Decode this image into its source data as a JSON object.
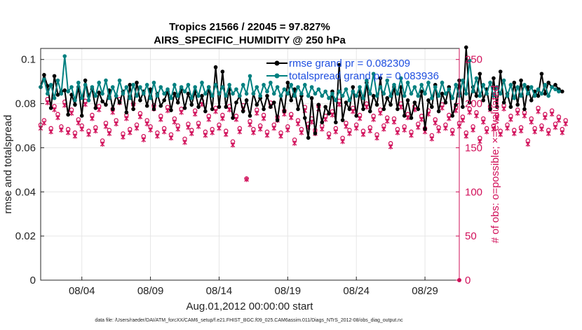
{
  "colors": {
    "rmse": "#000000",
    "spread": "#008080",
    "obs": "#d1105a",
    "legend_text": "#1f4fe0",
    "grid": "#e6e6e6"
  },
  "chart_data": {
    "type": "line",
    "title_line1": "Tropics 21566 / 22045 = 97.827%",
    "title_line2": "AIRS_SPECIFIC_HUMIDITY @ 250 hPa",
    "xlabel": "Aug.01,2012 00:00:00 start",
    "ylabel": "rmse and totalspread",
    "y2label": "# of obs: o=possible; ×=evaluated",
    "footer": "data file: /Users/raeder/DAI/ATM_forcXX/CAM6_setup/f.e21.FHIST_BGC.f09_025.CAM6assim.011/Diags_NTrS_2012-08/obs_diag_output.nc",
    "xlim": [
      1.0,
      31.5
    ],
    "ylim": [
      0,
      0.105
    ],
    "y2lim": [
      0,
      262.5
    ],
    "x_tick_values": [
      4,
      9,
      14,
      19,
      24,
      29
    ],
    "x_tick_labels": [
      "08/04",
      "08/09",
      "08/14",
      "08/19",
      "08/24",
      "08/29"
    ],
    "y_ticks": [
      0,
      0.02,
      0.04,
      0.06,
      0.08,
      0.1
    ],
    "y_tick_labels": [
      "0",
      "0.02",
      "0.04",
      "0.06",
      "0.08",
      "0.1"
    ],
    "y2_ticks": [
      0,
      50,
      100,
      150,
      200,
      250
    ],
    "y2_tick_labels": [
      "0",
      "50",
      "100",
      "150",
      "200",
      "250"
    ],
    "legend": {
      "position": "top-right",
      "rmse_label": "rmse grand pr = 0.082309",
      "spread_label": "totalspread grand pr = 0.083936"
    },
    "x_start": 1.0,
    "x_step": 0.25,
    "series": [
      {
        "name": "rmse",
        "axis": "left",
        "values": [
          0.0875,
          0.093,
          0.088,
          0.078,
          0.0925,
          0.084,
          0.0855,
          0.086,
          0.075,
          0.084,
          0.0795,
          0.0875,
          0.0745,
          0.0905,
          0.0835,
          0.0865,
          0.078,
          0.085,
          0.081,
          0.0795,
          0.086,
          0.0775,
          0.0835,
          0.0805,
          0.0855,
          0.076,
          0.0885,
          0.0775,
          0.0895,
          0.0815,
          0.0855,
          0.079,
          0.0865,
          0.0775,
          0.0845,
          0.079,
          0.0815,
          0.0855,
          0.077,
          0.0845,
          0.0805,
          0.0865,
          0.078,
          0.0845,
          0.0795,
          0.0855,
          0.0785,
          0.0835,
          0.0765,
          0.0875,
          0.0775,
          0.0965,
          0.0785,
          0.0945,
          0.0785,
          0.0865,
          0.0735,
          0.0805,
          0.0835,
          0.0765,
          0.0815,
          0.0745,
          0.0845,
          0.0795,
          0.0825,
          0.0775,
          0.0835,
          0.0785,
          0.0805,
          0.0725,
          0.0835,
          0.0765,
          0.0895,
          0.0815,
          0.0865,
          0.0775,
          0.0835,
          0.0735,
          0.0645,
          0.0825,
          0.0665,
          0.0795,
          0.0715,
          0.0785,
          0.0755,
          0.0855,
          0.0715,
          0.0975,
          0.0725,
          0.0805,
          0.0775,
          0.0875,
          0.0745,
          0.0855,
          0.0775,
          0.0895,
          0.0765,
          0.0835,
          0.0795,
          0.0915,
          0.0775,
          0.0825,
          0.0795,
          0.0875,
          0.0775,
          0.0875,
          0.0745,
          0.0815,
          0.0735,
          0.0805,
          0.0775,
          0.0855,
          0.0685,
          0.0815,
          0.0785,
          0.0885,
          0.0765,
          0.0845,
          0.0805,
          0.0875,
          0.0745,
          0.0795,
          0.0905,
          0.0785,
          0.1055,
          0.0805,
          0.0875,
          0.0835,
          0.0935,
          0.0815,
          0.0865,
          0.0775,
          0.0915,
          0.0785,
          0.0945,
          0.0805,
          0.0845,
          0.0785,
          0.0895,
          0.0795,
          0.0905,
          0.0775,
          0.0875,
          0.0815,
          0.0855,
          0.0835,
          0.0935,
          0.0845,
          0.0895,
          0.0875,
          0.0885,
          0.0865,
          0.0855
        ]
      },
      {
        "name": "totalspread",
        "axis": "left",
        "values": [
          0.0875,
          0.091,
          0.0845,
          0.0885,
          0.0825,
          0.0905,
          0.0845,
          0.1015,
          0.0855,
          0.0875,
          0.0815,
          0.0895,
          0.0825,
          0.0885,
          0.0815,
          0.0875,
          0.0835,
          0.0895,
          0.0845,
          0.0905,
          0.0825,
          0.0875,
          0.0835,
          0.0905,
          0.0845,
          0.0875,
          0.0825,
          0.0885,
          0.0835,
          0.0875,
          0.0845,
          0.0885,
          0.0825,
          0.0895,
          0.0835,
          0.0875,
          0.0845,
          0.0865,
          0.0825,
          0.0885,
          0.0835,
          0.0875,
          0.0855,
          0.0885,
          0.0825,
          0.0875,
          0.0835,
          0.0895,
          0.0845,
          0.0875,
          0.0835,
          0.0885,
          0.0845,
          0.0875,
          0.0835,
          0.0885,
          0.0845,
          0.0865,
          0.0835,
          0.0885,
          0.0845,
          0.0925,
          0.0845,
          0.0875,
          0.0835,
          0.0885,
          0.0855,
          0.0895,
          0.0845,
          0.0875,
          0.0835,
          0.0865,
          0.0845,
          0.0885,
          0.0835,
          0.0875,
          0.0845,
          0.0885,
          0.0835,
          0.0875,
          0.0845,
          0.0865,
          0.0835,
          0.0855,
          0.0825,
          0.0845,
          0.0815,
          0.0855,
          0.0835,
          0.0865,
          0.0815,
          0.0855,
          0.0835,
          0.0875,
          0.0825,
          0.0905,
          0.0845,
          0.0935,
          0.0835,
          0.0875,
          0.0845,
          0.0905,
          0.0835,
          0.0885,
          0.0845,
          0.0915,
          0.0835,
          0.0895,
          0.0845,
          0.0875,
          0.0835,
          0.0885,
          0.0845,
          0.0895,
          0.0825,
          0.0875,
          0.0835,
          0.0895,
          0.0845,
          0.0865,
          0.0825,
          0.0885,
          0.0835,
          0.0905,
          0.0845,
          0.0995,
          0.0855,
          0.0915,
          0.0835,
          0.0885,
          0.0845,
          0.0895,
          0.0835,
          0.0875,
          0.0845,
          0.0905,
          0.0835,
          0.0885,
          0.0825,
          0.0875,
          0.0835,
          0.0885,
          0.0845,
          0.0875,
          0.0835,
          0.0865,
          0.0845,
          0.0885,
          0.0835,
          0.0875,
          0.0865,
          0.0855
        ]
      },
      {
        "name": "obs possible",
        "axis": "right",
        "values": [
          176,
          181,
          205,
          172,
          197,
          188,
          174,
          202,
          171,
          193,
          167,
          182,
          175,
          203,
          169,
          187,
          173,
          197,
          158,
          178,
          170,
          194,
          181,
          205,
          166,
          187,
          171,
          200,
          176,
          189,
          163,
          181,
          174,
          198,
          167,
          186,
          172,
          196,
          165,
          183,
          175,
          194,
          160,
          177,
          170,
          192,
          178,
          203,
          168,
          186,
          171,
          195,
          176,
          187,
          169,
          197,
          157,
          186,
          172,
          198,
          115,
          180,
          171,
          193,
          175,
          187,
          168,
          201,
          176,
          185,
          167,
          192,
          174,
          188,
          159,
          181,
          171,
          196,
          177,
          183,
          170,
          198,
          175,
          186,
          166,
          191,
          172,
          203,
          161,
          178,
          170,
          195,
          176,
          187,
          169,
          200,
          173,
          186,
          165,
          193,
          175,
          184,
          155,
          183,
          171,
          200,
          174,
          188,
          168,
          197,
          177,
          186,
          172,
          192,
          164,
          182,
          173,
          199,
          176,
          187,
          170,
          196,
          178,
          185,
          167,
          194,
          174,
          190,
          161,
          183,
          172,
          197,
          175,
          187,
          169,
          198,
          176,
          186,
          170,
          193,
          173,
          190,
          158,
          183,
          172,
          195,
          175,
          188,
          170,
          192,
          177,
          185,
          171,
          181
        ]
      },
      {
        "name": "obs evaluated",
        "axis": "right",
        "values": [
          172,
          178,
          201,
          168,
          193,
          184,
          170,
          198,
          167,
          189,
          163,
          178,
          171,
          199,
          165,
          183,
          169,
          193,
          154,
          174,
          166,
          190,
          177,
          201,
          162,
          183,
          167,
          196,
          172,
          185,
          159,
          177,
          170,
          194,
          163,
          182,
          168,
          192,
          161,
          179,
          171,
          190,
          156,
          173,
          166,
          188,
          174,
          199,
          164,
          182,
          167,
          191,
          172,
          183,
          165,
          193,
          153,
          182,
          168,
          194,
          114,
          176,
          167,
          189,
          171,
          183,
          164,
          197,
          172,
          181,
          163,
          188,
          170,
          184,
          155,
          177,
          167,
          192,
          173,
          179,
          166,
          194,
          171,
          182,
          162,
          187,
          168,
          199,
          157,
          174,
          166,
          191,
          172,
          183,
          165,
          196,
          169,
          182,
          161,
          189,
          171,
          180,
          151,
          179,
          167,
          196,
          170,
          184,
          164,
          193,
          173,
          182,
          168,
          188,
          160,
          178,
          169,
          195,
          172,
          183,
          166,
          192,
          174,
          181,
          163,
          190,
          170,
          186,
          157,
          179,
          168,
          193,
          171,
          183,
          165,
          194,
          172,
          182,
          166,
          189,
          169,
          186,
          154,
          179,
          168,
          191,
          171,
          184,
          166,
          188,
          173,
          181,
          167,
          177
        ]
      }
    ]
  }
}
